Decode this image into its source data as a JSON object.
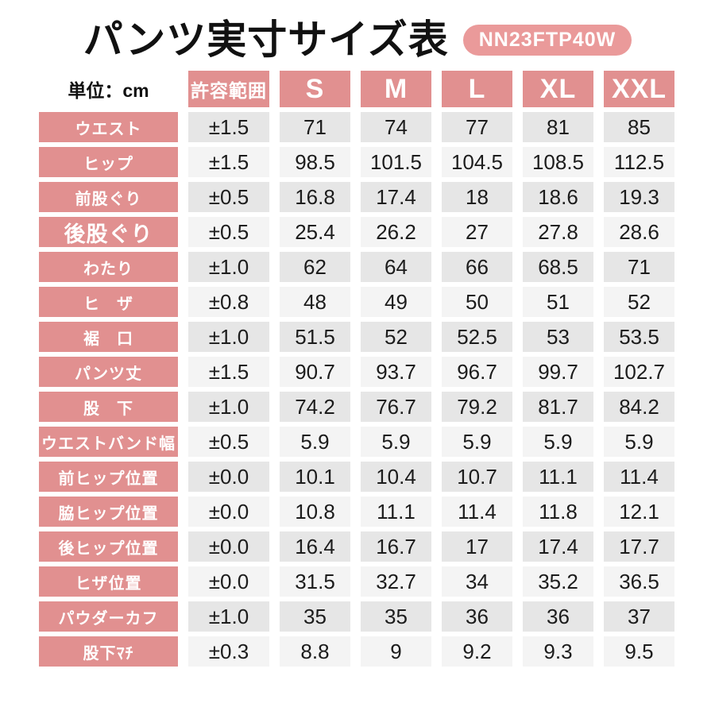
{
  "header": {
    "title": "パンツ実寸サイズ表",
    "model_code": "NN23FTP40W"
  },
  "table": {
    "unit_label": "単位：cm"
  },
  "colors": {
    "pink": "#e19090",
    "badge_pink": "#ea9a9a",
    "stripe_dark": "#e6e6e6",
    "stripe_light": "#f4f4f4",
    "text": "#1c1c1c"
  },
  "chart_data": {
    "type": "table",
    "title": "パンツ実寸サイズ表",
    "unit": "cm",
    "model_code": "NN23FTP40W",
    "tolerance_header": "許容範囲",
    "size_columns": [
      "S",
      "M",
      "L",
      "XL",
      "XXL"
    ],
    "rows": [
      {
        "label": "ウエスト",
        "tolerance": "±1.5",
        "values": [
          "71",
          "74",
          "77",
          "81",
          "85"
        ]
      },
      {
        "label": "ヒップ",
        "tolerance": "±1.5",
        "values": [
          "98.5",
          "101.5",
          "104.5",
          "108.5",
          "112.5"
        ]
      },
      {
        "label": "前股ぐり",
        "tolerance": "±0.5",
        "values": [
          "16.8",
          "17.4",
          "18",
          "18.6",
          "19.3"
        ]
      },
      {
        "label": "後股ぐり",
        "tolerance": "±0.5",
        "values": [
          "25.4",
          "26.2",
          "27",
          "27.8",
          "28.6"
        ],
        "emphasis": true
      },
      {
        "label": "わたり",
        "tolerance": "±1.0",
        "values": [
          "62",
          "64",
          "66",
          "68.5",
          "71"
        ]
      },
      {
        "label": "ヒ　ザ",
        "tolerance": "±0.8",
        "values": [
          "48",
          "49",
          "50",
          "51",
          "52"
        ]
      },
      {
        "label": "裾　口",
        "tolerance": "±1.0",
        "values": [
          "51.5",
          "52",
          "52.5",
          "53",
          "53.5"
        ]
      },
      {
        "label": "パンツ丈",
        "tolerance": "±1.5",
        "values": [
          "90.7",
          "93.7",
          "96.7",
          "99.7",
          "102.7"
        ]
      },
      {
        "label": "股　下",
        "tolerance": "±1.0",
        "values": [
          "74.2",
          "76.7",
          "79.2",
          "81.7",
          "84.2"
        ]
      },
      {
        "label": "ウエストバンド幅",
        "tolerance": "±0.5",
        "values": [
          "5.9",
          "5.9",
          "5.9",
          "5.9",
          "5.9"
        ]
      },
      {
        "label": "前ヒップ位置",
        "tolerance": "±0.0",
        "values": [
          "10.1",
          "10.4",
          "10.7",
          "11.1",
          "11.4"
        ]
      },
      {
        "label": "脇ヒップ位置",
        "tolerance": "±0.0",
        "values": [
          "10.8",
          "11.1",
          "11.4",
          "11.8",
          "12.1"
        ]
      },
      {
        "label": "後ヒップ位置",
        "tolerance": "±0.0",
        "values": [
          "16.4",
          "16.7",
          "17",
          "17.4",
          "17.7"
        ]
      },
      {
        "label": "ヒザ位置",
        "tolerance": "±0.0",
        "values": [
          "31.5",
          "32.7",
          "34",
          "35.2",
          "36.5"
        ]
      },
      {
        "label": "パウダーカフ",
        "tolerance": "±1.0",
        "values": [
          "35",
          "35",
          "36",
          "36",
          "37"
        ]
      },
      {
        "label": "股下ﾏﾁ",
        "tolerance": "±0.3",
        "values": [
          "8.8",
          "9",
          "9.2",
          "9.3",
          "9.5"
        ]
      }
    ]
  }
}
